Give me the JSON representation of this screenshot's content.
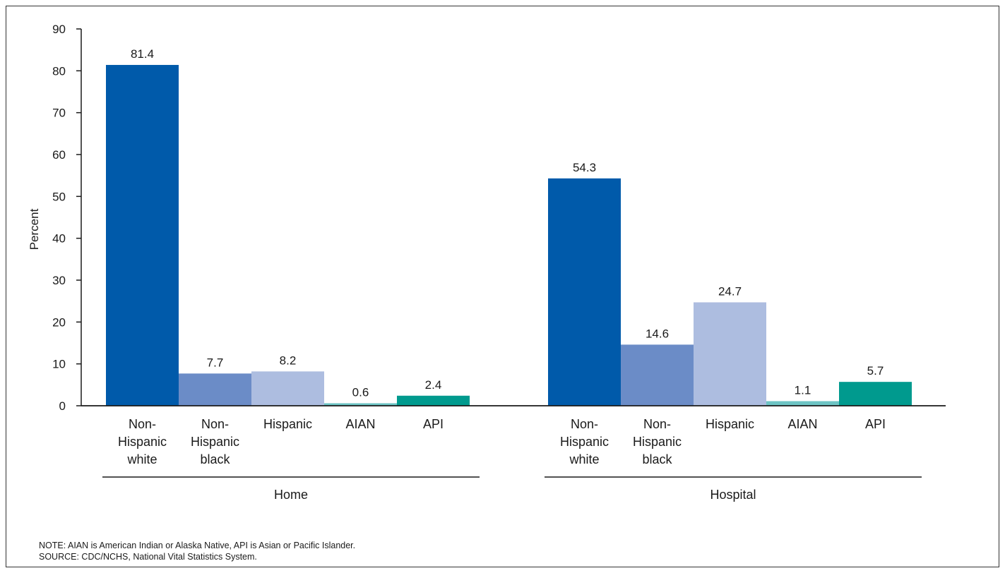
{
  "chart_data": {
    "type": "bar",
    "ylabel": "Percent",
    "ylim": [
      0,
      90
    ],
    "yticks": [
      0,
      10,
      20,
      30,
      40,
      50,
      60,
      70,
      80,
      90
    ],
    "grid": false,
    "categories": [
      [
        "Non-",
        "Hispanic",
        "white"
      ],
      [
        "Non-",
        "Hispanic",
        "black"
      ],
      [
        "Hispanic"
      ],
      [
        "AIAN"
      ],
      [
        "API"
      ]
    ],
    "groups": [
      {
        "name": "Home",
        "values": [
          81.4,
          7.7,
          8.2,
          0.6,
          2.4
        ]
      },
      {
        "name": "Hospital",
        "values": [
          54.3,
          14.6,
          24.7,
          1.1,
          5.7
        ]
      }
    ],
    "colors": [
      "#005aaa",
      "#6b8cc7",
      "#adbde0",
      "#6dc4c4",
      "#009a8e"
    ]
  },
  "notes": {
    "note": "NOTE: AIAN is American Indian or Alaska Native, API is Asian or Pacific Islander.",
    "source": "SOURCE: CDC/NCHS, National Vital Statistics System."
  }
}
